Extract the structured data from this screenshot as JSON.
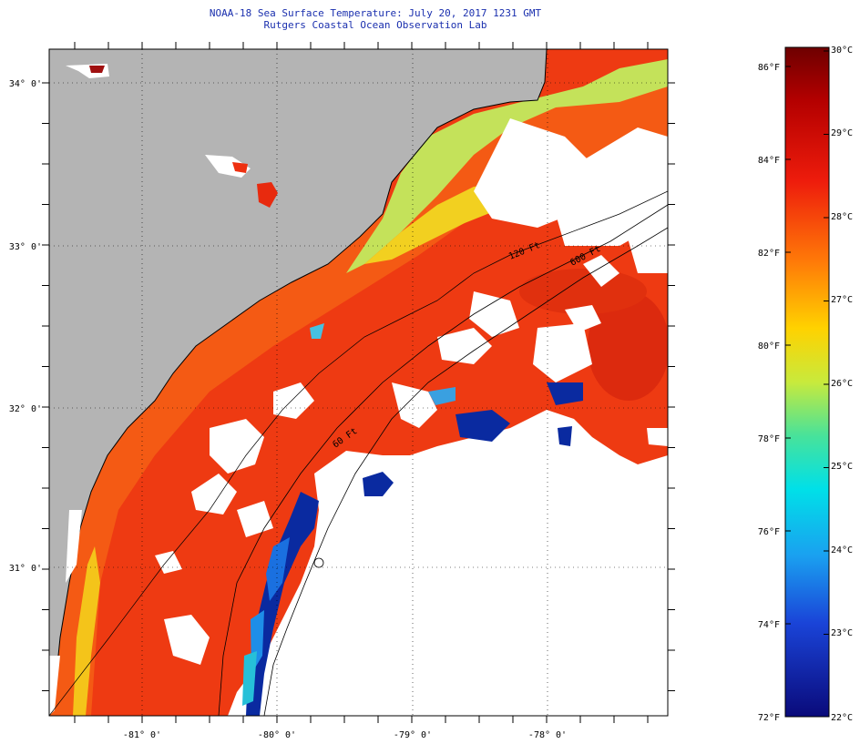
{
  "title": {
    "line1": "NOAA-18 Sea Surface Temperature:  July 20, 2017 1231 GMT",
    "line2": "Rutgers Coastal Ocean Observation Lab"
  },
  "map": {
    "lat_labels": [
      "34° 0'",
      "33° 0'",
      "32° 0'",
      "31° 0'"
    ],
    "lon_labels": [
      "-81° 0'",
      "-80° 0'",
      "-79° 0'",
      "-78° 0'"
    ],
    "isobath_labels": [
      "120 Ft",
      "600 Ft",
      "60 Ft"
    ],
    "colors": {
      "land": "#b4b4b4",
      "cloud": "#ffffff",
      "warm_offshore": "#ef3a12",
      "coastal_cool": "#c8e05a",
      "cold_upwelling": "#0a2aa0"
    }
  },
  "colorbar": {
    "celsius_labels": [
      "30°C",
      "29°C",
      "28°C",
      "27°C",
      "26°C",
      "25°C",
      "24°C",
      "23°C",
      "22°C"
    ],
    "fahrenheit_labels": [
      "86°F",
      "84°F",
      "82°F",
      "80°F",
      "78°F",
      "76°F",
      "74°F",
      "72°F"
    ]
  }
}
